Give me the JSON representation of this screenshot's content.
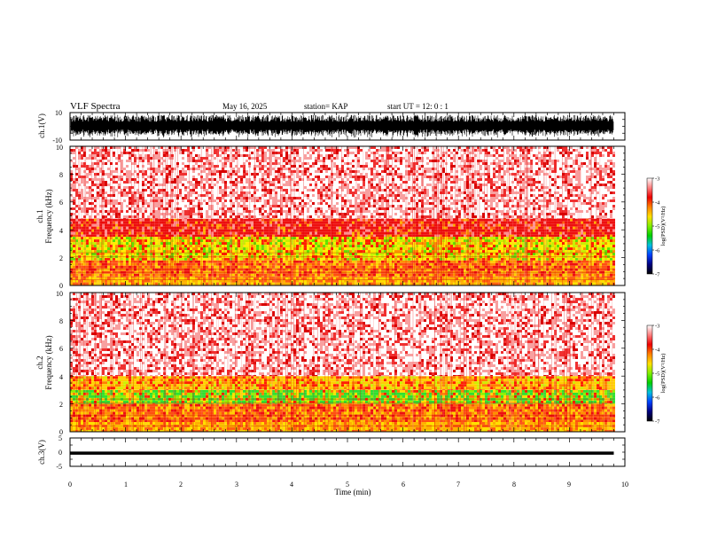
{
  "header": {
    "title": "VLF Spectra",
    "date": "May 16, 2025",
    "station": "station= KAP",
    "start_ut": "start  UT  =   12: 0   : 1"
  },
  "chart_data": [
    {
      "type": "line",
      "panel": "ch1-waveform",
      "ylabel": "ch.1(V)",
      "ylim": [
        -10,
        10
      ],
      "yticks": [
        "10",
        "-10"
      ],
      "xlim": [
        0,
        10
      ],
      "data_end_min": 9.8,
      "series": [
        {
          "values": []
        }
      ],
      "trace_color": "#000000"
    },
    {
      "type": "heatmap",
      "panel": "ch1-spectrogram",
      "ylabel_top": "ch.1",
      "ylabel": "Frequency  (kHz)",
      "ylim": [
        0,
        10
      ],
      "yticks": [
        "0",
        "2",
        "4",
        "6",
        "8",
        "10"
      ],
      "xlim": [
        0,
        10
      ],
      "data_end_min": 9.8,
      "colorbar": {
        "label": "log(PSD)(V²/Hz)",
        "ticks": [
          "-3",
          "-4",
          "-5",
          "-6",
          "-7"
        ],
        "range": [
          -7,
          -3
        ]
      },
      "bands": [
        {
          "freq_khz": [
            0.0,
            0.6
          ],
          "level": "orange-yellow"
        },
        {
          "freq_khz": [
            0.6,
            1.8
          ],
          "level": "orange"
        },
        {
          "freq_khz": [
            1.8,
            3.5
          ],
          "level": "yellow-green"
        },
        {
          "freq_khz": [
            3.5,
            4.8
          ],
          "level": "red"
        },
        {
          "freq_khz": [
            4.8,
            10.0
          ],
          "level": "light-red"
        }
      ]
    },
    {
      "type": "heatmap",
      "panel": "ch2-spectrogram",
      "ylabel_top": "ch.2",
      "ylabel": "Frequency  (kHz)",
      "ylim": [
        0,
        10
      ],
      "yticks": [
        "0",
        "2",
        "4",
        "6",
        "8",
        "10"
      ],
      "xlim": [
        0,
        10
      ],
      "data_end_min": 9.8,
      "colorbar": {
        "label": "log(PSD)(V²/Hz)",
        "ticks": [
          "-3",
          "-4",
          "-5",
          "-6",
          "-7"
        ],
        "range": [
          -7,
          -3
        ]
      },
      "bands": [
        {
          "freq_khz": [
            0.0,
            0.7
          ],
          "level": "orange-yellow"
        },
        {
          "freq_khz": [
            0.7,
            2.0
          ],
          "level": "orange"
        },
        {
          "freq_khz": [
            2.0,
            3.0
          ],
          "level": "green"
        },
        {
          "freq_khz": [
            3.0,
            4.0
          ],
          "level": "yellow-orange"
        },
        {
          "freq_khz": [
            4.0,
            10.0
          ],
          "level": "light-red"
        }
      ]
    },
    {
      "type": "line",
      "panel": "ch3-waveform",
      "ylabel": "ch.3(V)",
      "ylim": [
        -5,
        5
      ],
      "yticks": [
        "5",
        "0",
        "-5"
      ],
      "xlim": [
        0,
        10
      ],
      "data_end_min": 9.8,
      "series": [
        {
          "values": []
        }
      ],
      "trace_color": "#000000",
      "xlabel": "Time  (min)",
      "xticks": [
        "0",
        "1",
        "2",
        "3",
        "4",
        "5",
        "6",
        "7",
        "8",
        "9",
        "10"
      ]
    }
  ]
}
